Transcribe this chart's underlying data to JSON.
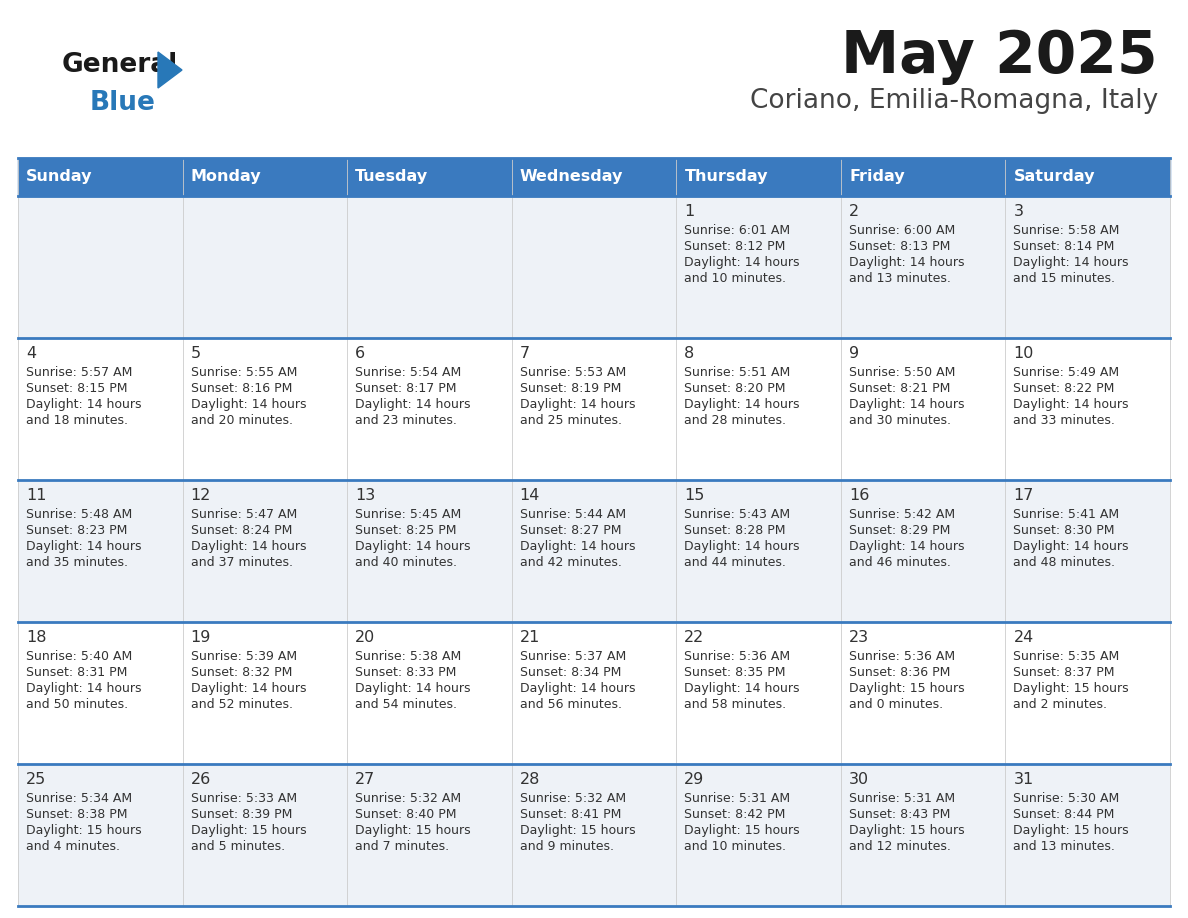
{
  "title": "May 2025",
  "subtitle": "Coriano, Emilia-Romagna, Italy",
  "days_of_week": [
    "Sunday",
    "Monday",
    "Tuesday",
    "Wednesday",
    "Thursday",
    "Friday",
    "Saturday"
  ],
  "header_bg": "#3a7abf",
  "header_text": "#ffffff",
  "cell_bg_odd": "#eef2f7",
  "cell_bg_even": "#ffffff",
  "border_color": "#3a7abf",
  "text_color": "#333333",
  "title_color": "#1a1a1a",
  "subtitle_color": "#444444",
  "logo_black": "#1a1a1a",
  "logo_blue": "#2878b8",
  "calendar_data": [
    [
      null,
      null,
      null,
      null,
      {
        "day": 1,
        "sunrise": "6:01 AM",
        "sunset": "8:12 PM",
        "daylight": "14 hours",
        "daylight2": "and 10 minutes."
      },
      {
        "day": 2,
        "sunrise": "6:00 AM",
        "sunset": "8:13 PM",
        "daylight": "14 hours",
        "daylight2": "and 13 minutes."
      },
      {
        "day": 3,
        "sunrise": "5:58 AM",
        "sunset": "8:14 PM",
        "daylight": "14 hours",
        "daylight2": "and 15 minutes."
      }
    ],
    [
      {
        "day": 4,
        "sunrise": "5:57 AM",
        "sunset": "8:15 PM",
        "daylight": "14 hours",
        "daylight2": "and 18 minutes."
      },
      {
        "day": 5,
        "sunrise": "5:55 AM",
        "sunset": "8:16 PM",
        "daylight": "14 hours",
        "daylight2": "and 20 minutes."
      },
      {
        "day": 6,
        "sunrise": "5:54 AM",
        "sunset": "8:17 PM",
        "daylight": "14 hours",
        "daylight2": "and 23 minutes."
      },
      {
        "day": 7,
        "sunrise": "5:53 AM",
        "sunset": "8:19 PM",
        "daylight": "14 hours",
        "daylight2": "and 25 minutes."
      },
      {
        "day": 8,
        "sunrise": "5:51 AM",
        "sunset": "8:20 PM",
        "daylight": "14 hours",
        "daylight2": "and 28 minutes."
      },
      {
        "day": 9,
        "sunrise": "5:50 AM",
        "sunset": "8:21 PM",
        "daylight": "14 hours",
        "daylight2": "and 30 minutes."
      },
      {
        "day": 10,
        "sunrise": "5:49 AM",
        "sunset": "8:22 PM",
        "daylight": "14 hours",
        "daylight2": "and 33 minutes."
      }
    ],
    [
      {
        "day": 11,
        "sunrise": "5:48 AM",
        "sunset": "8:23 PM",
        "daylight": "14 hours",
        "daylight2": "and 35 minutes."
      },
      {
        "day": 12,
        "sunrise": "5:47 AM",
        "sunset": "8:24 PM",
        "daylight": "14 hours",
        "daylight2": "and 37 minutes."
      },
      {
        "day": 13,
        "sunrise": "5:45 AM",
        "sunset": "8:25 PM",
        "daylight": "14 hours",
        "daylight2": "and 40 minutes."
      },
      {
        "day": 14,
        "sunrise": "5:44 AM",
        "sunset": "8:27 PM",
        "daylight": "14 hours",
        "daylight2": "and 42 minutes."
      },
      {
        "day": 15,
        "sunrise": "5:43 AM",
        "sunset": "8:28 PM",
        "daylight": "14 hours",
        "daylight2": "and 44 minutes."
      },
      {
        "day": 16,
        "sunrise": "5:42 AM",
        "sunset": "8:29 PM",
        "daylight": "14 hours",
        "daylight2": "and 46 minutes."
      },
      {
        "day": 17,
        "sunrise": "5:41 AM",
        "sunset": "8:30 PM",
        "daylight": "14 hours",
        "daylight2": "and 48 minutes."
      }
    ],
    [
      {
        "day": 18,
        "sunrise": "5:40 AM",
        "sunset": "8:31 PM",
        "daylight": "14 hours",
        "daylight2": "and 50 minutes."
      },
      {
        "day": 19,
        "sunrise": "5:39 AM",
        "sunset": "8:32 PM",
        "daylight": "14 hours",
        "daylight2": "and 52 minutes."
      },
      {
        "day": 20,
        "sunrise": "5:38 AM",
        "sunset": "8:33 PM",
        "daylight": "14 hours",
        "daylight2": "and 54 minutes."
      },
      {
        "day": 21,
        "sunrise": "5:37 AM",
        "sunset": "8:34 PM",
        "daylight": "14 hours",
        "daylight2": "and 56 minutes."
      },
      {
        "day": 22,
        "sunrise": "5:36 AM",
        "sunset": "8:35 PM",
        "daylight": "14 hours",
        "daylight2": "and 58 minutes."
      },
      {
        "day": 23,
        "sunrise": "5:36 AM",
        "sunset": "8:36 PM",
        "daylight": "15 hours",
        "daylight2": "and 0 minutes."
      },
      {
        "day": 24,
        "sunrise": "5:35 AM",
        "sunset": "8:37 PM",
        "daylight": "15 hours",
        "daylight2": "and 2 minutes."
      }
    ],
    [
      {
        "day": 25,
        "sunrise": "5:34 AM",
        "sunset": "8:38 PM",
        "daylight": "15 hours",
        "daylight2": "and 4 minutes."
      },
      {
        "day": 26,
        "sunrise": "5:33 AM",
        "sunset": "8:39 PM",
        "daylight": "15 hours",
        "daylight2": "and 5 minutes."
      },
      {
        "day": 27,
        "sunrise": "5:32 AM",
        "sunset": "8:40 PM",
        "daylight": "15 hours",
        "daylight2": "and 7 minutes."
      },
      {
        "day": 28,
        "sunrise": "5:32 AM",
        "sunset": "8:41 PM",
        "daylight": "15 hours",
        "daylight2": "and 9 minutes."
      },
      {
        "day": 29,
        "sunrise": "5:31 AM",
        "sunset": "8:42 PM",
        "daylight": "15 hours",
        "daylight2": "and 10 minutes."
      },
      {
        "day": 30,
        "sunrise": "5:31 AM",
        "sunset": "8:43 PM",
        "daylight": "15 hours",
        "daylight2": "and 12 minutes."
      },
      {
        "day": 31,
        "sunrise": "5:30 AM",
        "sunset": "8:44 PM",
        "daylight": "15 hours",
        "daylight2": "and 13 minutes."
      }
    ]
  ]
}
